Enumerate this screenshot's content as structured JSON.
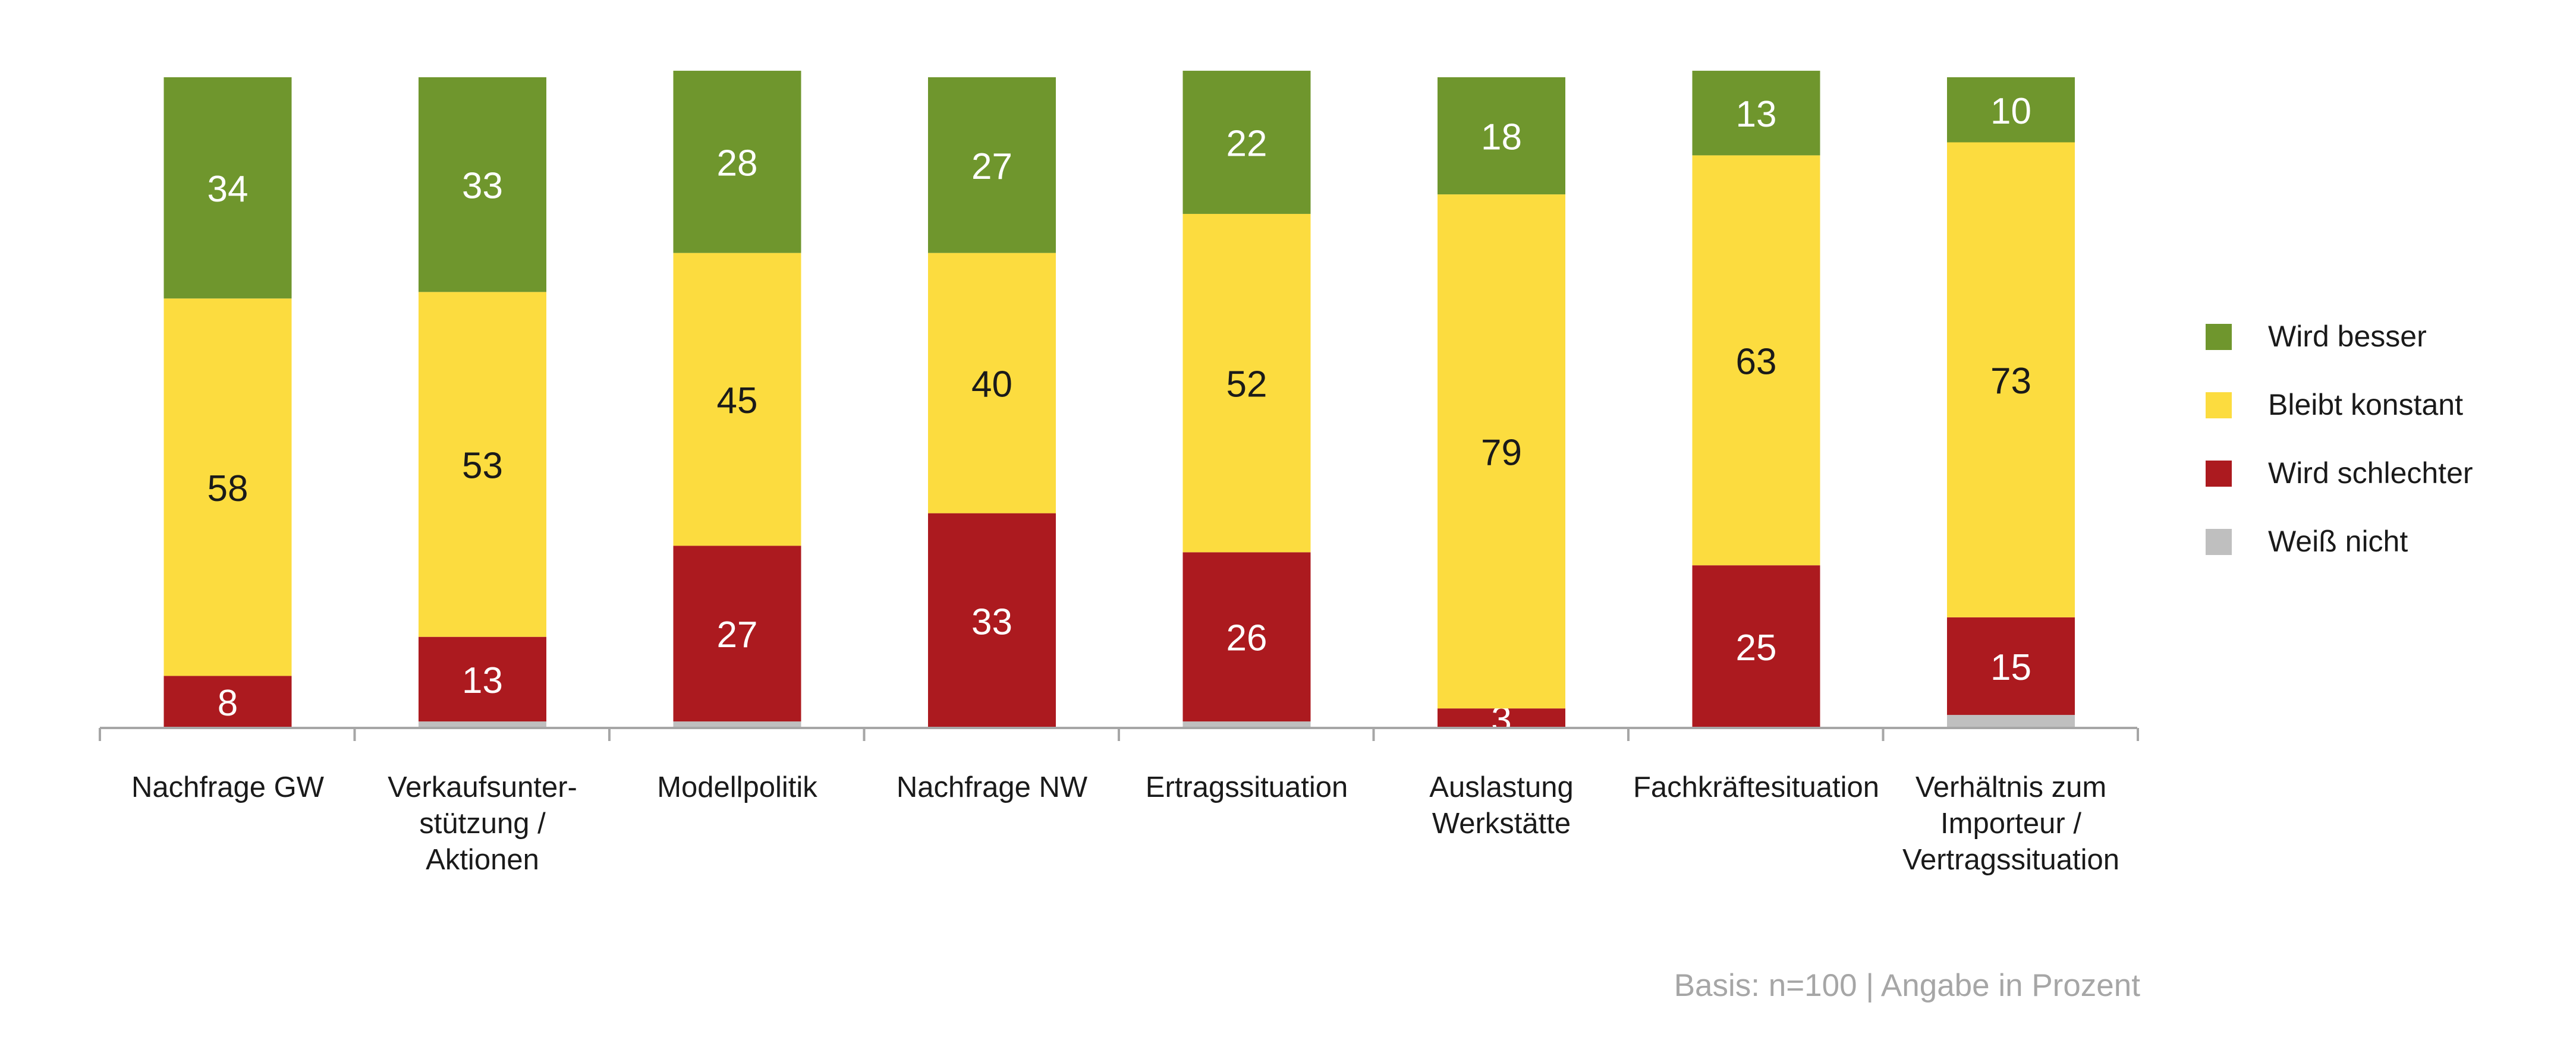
{
  "colors": {
    "wird_besser": "#6F962D",
    "bleibt_konstant": "#FCDC3F",
    "wird_schlechter": "#AC1A1F",
    "weiss_nicht": "#BFBFBF",
    "axis": "#A6A6A6",
    "label_light": "#ffffff",
    "label_dark": "#1a1a1a"
  },
  "footnote": "Basis: n=100 | Angabe in Prozent",
  "chart_data": {
    "type": "bar",
    "stacked": true,
    "ylim": [
      0,
      100
    ],
    "categories": [
      "Nachfrage GW",
      "Verkaufsunter-\nstützung /\nAktionen",
      "Modellpolitik",
      "Nachfrage NW",
      "Ertragssituation",
      "Auslastung\nWerkstätte",
      "Fachkräftesituation",
      "Verhältnis zum\nImporteur /\nVertragssituation"
    ],
    "series": [
      {
        "name": "Weiß nicht",
        "color_key": "weiss_nicht",
        "values": [
          0,
          1,
          1,
          0,
          1,
          0,
          0,
          2
        ],
        "show_labels": false
      },
      {
        "name": "Wird schlechter",
        "color_key": "wird_schlechter",
        "values": [
          8,
          13,
          27,
          33,
          26,
          3,
          25,
          15
        ],
        "show_labels": true
      },
      {
        "name": "Bleibt konstant",
        "color_key": "bleibt_konstant",
        "values": [
          58,
          53,
          45,
          40,
          52,
          79,
          63,
          73
        ],
        "show_labels": true
      },
      {
        "name": "Wird besser",
        "color_key": "wird_besser",
        "values": [
          34,
          33,
          28,
          27,
          22,
          18,
          13,
          10
        ],
        "show_labels": true
      }
    ],
    "legend": {
      "position": "right",
      "order": [
        "Wird besser",
        "Bleibt konstant",
        "Wird schlechter",
        "Weiß nicht"
      ]
    },
    "grid": false
  }
}
